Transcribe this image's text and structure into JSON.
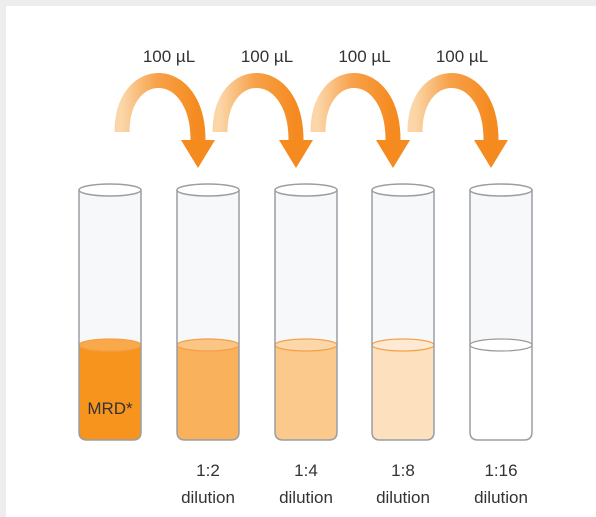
{
  "transfers": [
    "100 µL",
    "100 µL",
    "100 µL",
    "100 µL"
  ],
  "tubes": [
    {
      "label": "MRD*"
    },
    {
      "ratio": "1:2",
      "caption": "dilution"
    },
    {
      "ratio": "1:4",
      "caption": "dilution"
    },
    {
      "ratio": "1:8",
      "caption": "dilution"
    },
    {
      "ratio": "1:16",
      "caption": "dilution"
    }
  ]
}
